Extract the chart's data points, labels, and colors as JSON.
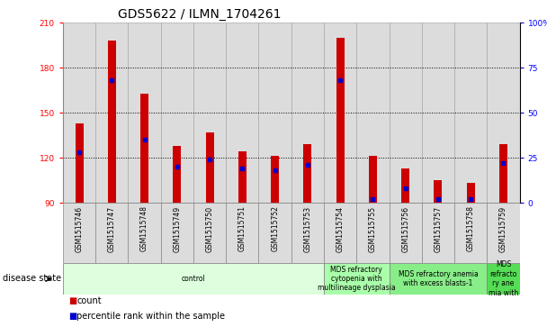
{
  "title": "GDS5622 / ILMN_1704261",
  "samples": [
    "GSM1515746",
    "GSM1515747",
    "GSM1515748",
    "GSM1515749",
    "GSM1515750",
    "GSM1515751",
    "GSM1515752",
    "GSM1515753",
    "GSM1515754",
    "GSM1515755",
    "GSM1515756",
    "GSM1515757",
    "GSM1515758",
    "GSM1515759"
  ],
  "counts": [
    143,
    198,
    163,
    128,
    137,
    124,
    121,
    129,
    200,
    121,
    113,
    105,
    103,
    129
  ],
  "percentile_ranks": [
    28,
    68,
    35,
    20,
    24,
    19,
    18,
    21,
    68,
    2,
    8,
    2,
    2,
    22
  ],
  "ymin": 90,
  "ymax": 210,
  "yticks": [
    90,
    120,
    150,
    180,
    210
  ],
  "y2min": 0,
  "y2max": 100,
  "y2ticks": [
    0,
    25,
    50,
    75,
    100
  ],
  "bar_color": "#CC0000",
  "dot_color": "#0000CC",
  "col_bg_color": "#DCDCDC",
  "plot_bg_color": "#FFFFFF",
  "disease_groups": [
    {
      "label": "control",
      "start": 0,
      "end": 8,
      "color": "#DDFFDD"
    },
    {
      "label": "MDS refractory\ncytopenia with\nmultilineage dysplasia",
      "start": 8,
      "end": 10,
      "color": "#AAFFAA"
    },
    {
      "label": "MDS refractory anemia\nwith excess blasts-1",
      "start": 10,
      "end": 13,
      "color": "#88EE88"
    },
    {
      "label": "MDS\nrefracto\nry ane\nmia with",
      "start": 13,
      "end": 14,
      "color": "#55DD55"
    }
  ],
  "title_fontsize": 10,
  "tick_fontsize": 6.5,
  "label_fontsize": 7.5
}
